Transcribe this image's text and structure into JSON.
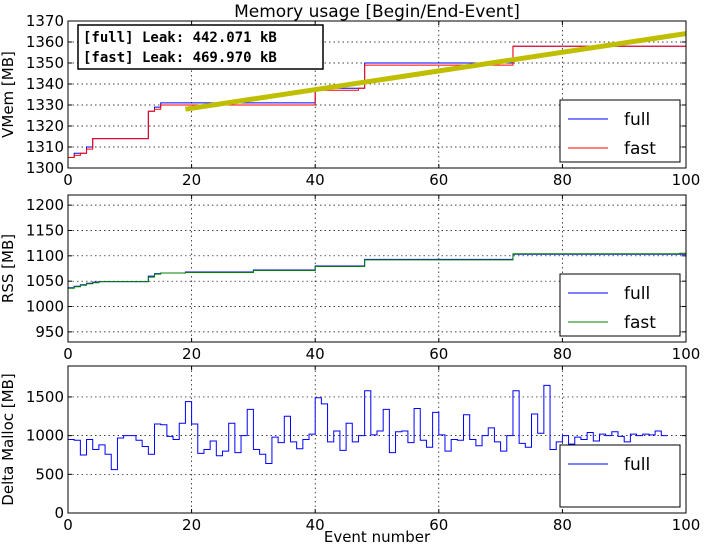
{
  "figure_title": "Memory usage [Begin/End-Event]",
  "colors": {
    "full": "#0000ff",
    "fast_vmem": "#ff0000",
    "fast_green": "#008000",
    "fit": "#bfbf00"
  },
  "chart_data": [
    {
      "type": "line",
      "title": "Memory usage [Begin/End-Event]",
      "ylabel": "VMem [MB]",
      "xlabel": "",
      "xlim": [
        0,
        100
      ],
      "ylim": [
        1300,
        1370
      ],
      "xticks": [
        "0",
        "20",
        "40",
        "60",
        "80",
        "100"
      ],
      "yticks": [
        "1300",
        "1310",
        "1320",
        "1330",
        "1340",
        "1350",
        "1360",
        "1370"
      ],
      "grid": true,
      "legend": "lower-right",
      "annotations": [
        "[full] Leak:  442.071 kB",
        "[fast] Leak:  469.970 kB"
      ],
      "series": [
        {
          "name": "full",
          "color": "#0000ff",
          "step": true,
          "x": [
            0,
            1,
            2,
            3,
            4,
            13,
            14,
            15,
            40,
            47,
            48,
            72,
            99
          ],
          "y": [
            1305,
            1307,
            1307,
            1310,
            1314,
            1327,
            1329,
            1331,
            1338,
            1338,
            1350,
            1358,
            1358
          ]
        },
        {
          "name": "fast",
          "color": "#ff0000",
          "step": true,
          "x": [
            0,
            1,
            2,
            3,
            4,
            13,
            14,
            15,
            40,
            47,
            48,
            72,
            99
          ],
          "y": [
            1305,
            1306,
            1307,
            1309,
            1314,
            1327,
            1328,
            1330,
            1337,
            1338,
            1349,
            1358,
            1358
          ]
        },
        {
          "name": "",
          "color": "#bfbf00",
          "step": false,
          "x": [
            19,
            100
          ],
          "y": [
            1328,
            1364
          ]
        }
      ]
    },
    {
      "type": "line",
      "ylabel": "RSS [MB]",
      "xlabel": "",
      "xlim": [
        0,
        100
      ],
      "ylim": [
        930,
        1220
      ],
      "xticks": [
        "0",
        "20",
        "40",
        "60",
        "80",
        "100"
      ],
      "yticks": [
        "950",
        "1000",
        "1050",
        "1100",
        "1150",
        "1200"
      ],
      "grid": true,
      "legend": "lower-right",
      "series": [
        {
          "name": "full",
          "color": "#0000ff",
          "step": true,
          "x": [
            0,
            1,
            2,
            3,
            4,
            5,
            13,
            14,
            15,
            19,
            30,
            40,
            48,
            72,
            99
          ],
          "y": [
            1037,
            1040,
            1043,
            1046,
            1048,
            1049,
            1060,
            1065,
            1066,
            1068,
            1072,
            1080,
            1093,
            1103,
            1103
          ]
        },
        {
          "name": "fast",
          "color": "#008000",
          "step": true,
          "x": [
            0,
            1,
            2,
            3,
            4,
            5,
            13,
            14,
            15,
            19,
            30,
            40,
            48,
            72,
            99
          ],
          "y": [
            1036,
            1039,
            1042,
            1045,
            1047,
            1049,
            1058,
            1064,
            1066,
            1067,
            1071,
            1079,
            1092,
            1104,
            1105
          ]
        }
      ]
    },
    {
      "type": "line",
      "ylabel": "Delta Malloc [MB]",
      "xlabel": "Event number",
      "xlim": [
        0,
        100
      ],
      "ylim": [
        0,
        1900
      ],
      "xticks": [
        "0",
        "20",
        "40",
        "60",
        "80",
        "100"
      ],
      "yticks": [
        "0",
        "500",
        "1000",
        "1500"
      ],
      "grid": true,
      "legend": "lower-right",
      "series": [
        {
          "name": "full",
          "color": "#0000ff",
          "step": true,
          "x": [
            0,
            1,
            2,
            3,
            4,
            5,
            6,
            7,
            8,
            9,
            10,
            11,
            12,
            13,
            14,
            15,
            16,
            17,
            18,
            19,
            20,
            21,
            22,
            23,
            24,
            25,
            26,
            27,
            28,
            29,
            30,
            31,
            32,
            33,
            34,
            35,
            36,
            37,
            38,
            39,
            40,
            41,
            42,
            43,
            44,
            45,
            46,
            47,
            48,
            49,
            50,
            51,
            52,
            53,
            54,
            55,
            56,
            57,
            58,
            59,
            60,
            61,
            62,
            63,
            64,
            65,
            66,
            67,
            68,
            69,
            70,
            71,
            72,
            73,
            74,
            75,
            76,
            77,
            78,
            79,
            80,
            81,
            82,
            83,
            84,
            85,
            86,
            87,
            88,
            89,
            90,
            91,
            92,
            93,
            94,
            95,
            96
          ],
          "y": [
            950,
            940,
            750,
            950,
            820,
            880,
            760,
            560,
            970,
            1000,
            1000,
            940,
            860,
            760,
            1150,
            1140,
            990,
            950,
            1160,
            1440,
            1150,
            770,
            820,
            930,
            740,
            800,
            1160,
            780,
            1000,
            1340,
            820,
            760,
            640,
            980,
            910,
            1250,
            920,
            830,
            950,
            1020,
            1490,
            1410,
            920,
            1060,
            810,
            1160,
            920,
            1000,
            1580,
            1010,
            1060,
            1340,
            780,
            1050,
            1060,
            910,
            1350,
            940,
            850,
            1300,
            1010,
            800,
            950,
            940,
            1270,
            950,
            870,
            1000,
            1100,
            920,
            800,
            1000,
            1580,
            900,
            850,
            1280,
            1030,
            1650,
            820,
            920,
            1000,
            890,
            980,
            950,
            1040,
            930,
            1020,
            1000,
            1050,
            990,
            920,
            1020,
            1000,
            1020,
            1010,
            1060,
            1000
          ]
        }
      ]
    }
  ]
}
